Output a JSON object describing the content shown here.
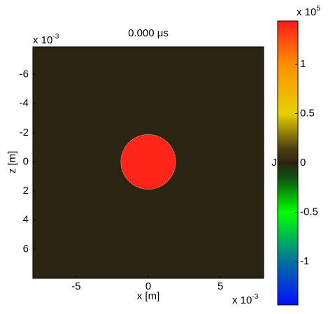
{
  "chart_data": {
    "type": "heatmap",
    "title": "0.000 μs",
    "xlabel": "x [m]",
    "ylabel": "z [m]",
    "x_multiplier": {
      "base": "x 10",
      "power": "-3"
    },
    "y_multiplier": {
      "base": "x 10",
      "power": "-3"
    },
    "xlim": [
      -8,
      8
    ],
    "xticks": [
      -5,
      0,
      5
    ],
    "ylim": [
      -7.9,
      8
    ],
    "yticks": [
      -6,
      -4,
      -2,
      0,
      2,
      4,
      6
    ],
    "y_reversed": true,
    "background_value": 0,
    "shapes": [
      {
        "x": 0,
        "y": 0,
        "r": 1.9,
        "value": 1.4
      }
    ],
    "colorbar": {
      "label": "J",
      "multiplier": {
        "base": "x 10",
        "power": "5"
      },
      "clim": [
        -1.44,
        1.44
      ],
      "ticks": [
        -1,
        -0.5,
        0,
        0.5,
        1
      ],
      "colormap": [
        {
          "value": -1.44,
          "color": "#0010ff"
        },
        {
          "value": -1.0,
          "color": "#0070a0"
        },
        {
          "value": -0.5,
          "color": "#00ff00"
        },
        {
          "value": -0.15,
          "color": "#105010"
        },
        {
          "value": 0,
          "color": "#2a2410"
        },
        {
          "value": 0.15,
          "color": "#504010"
        },
        {
          "value": 0.5,
          "color": "#e8d000"
        },
        {
          "value": 1.0,
          "color": "#ff9000"
        },
        {
          "value": 1.44,
          "color": "#ff1a1a"
        }
      ]
    }
  }
}
